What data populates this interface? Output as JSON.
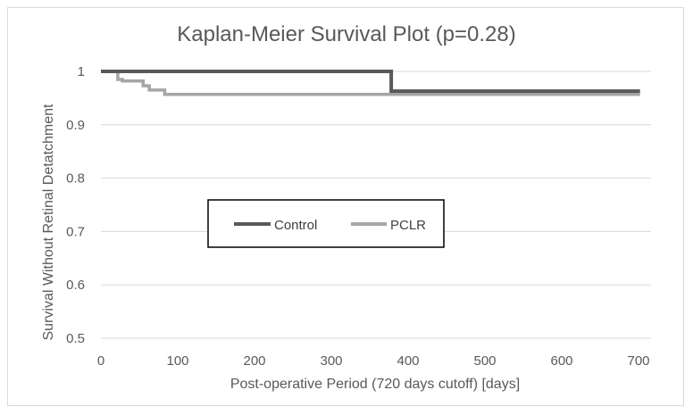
{
  "chart_data": {
    "type": "line",
    "step": true,
    "title": "Kaplan-Meier Survival Plot (p=0.28)",
    "xlabel": "Post-operative Period (720 days cutoff) [days]",
    "ylabel": "Survival Without Retinal Detatchment",
    "xlim": [
      0,
      700
    ],
    "ylim": [
      0.5,
      1
    ],
    "x_ticks": [
      0,
      100,
      200,
      300,
      400,
      500,
      600,
      700
    ],
    "y_ticks": [
      0.5,
      0.6,
      0.7,
      0.8,
      0.9,
      1
    ],
    "y_tick_labels": [
      "0.5",
      "0.6",
      "0.7",
      "0.8",
      "0.9",
      "1"
    ],
    "grid": "horizontal",
    "legend_position": "center-left, boxed",
    "series": [
      {
        "name": "Control",
        "color": "#595959",
        "x": [
          0,
          378,
          378,
          702
        ],
        "y": [
          1,
          1,
          0.963,
          0.963
        ]
      },
      {
        "name": "PCLR",
        "color": "#a6a6a6",
        "x": [
          0,
          22,
          22,
          28,
          28,
          55,
          55,
          63,
          63,
          83,
          83,
          702
        ],
        "y": [
          1,
          1,
          0.985,
          0.985,
          0.982,
          0.982,
          0.973,
          0.973,
          0.965,
          0.965,
          0.957,
          0.957
        ]
      }
    ]
  }
}
